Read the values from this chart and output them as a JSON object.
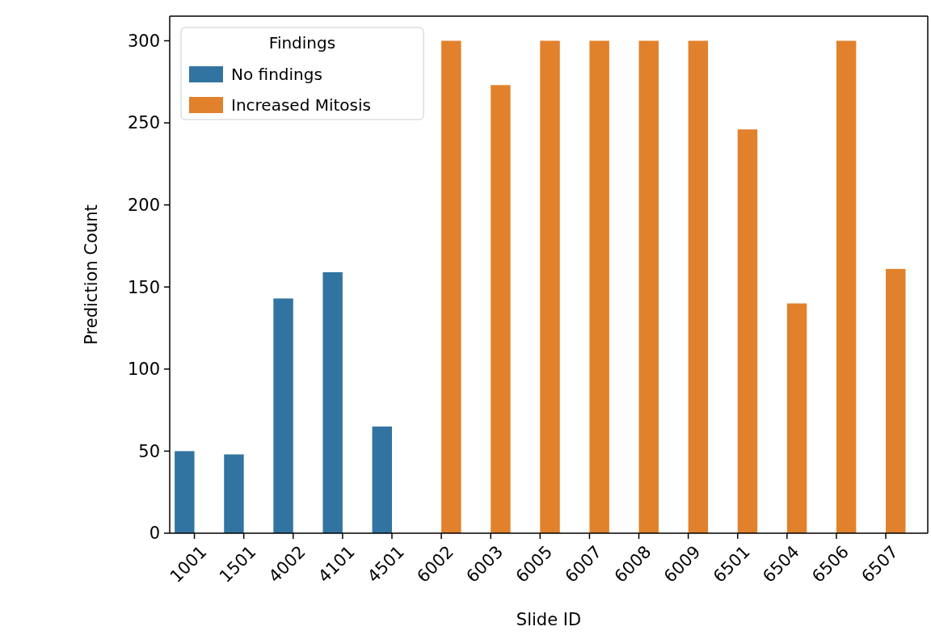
{
  "chart_data": {
    "type": "bar",
    "xlabel": "Slide ID",
    "ylabel": "Prediction Count",
    "legend_title": "Findings",
    "legend": "top left",
    "categories": [
      "1001",
      "1501",
      "4002",
      "4101",
      "4501",
      "6002",
      "6003",
      "6005",
      "6007",
      "6008",
      "6009",
      "6501",
      "6504",
      "6506",
      "6507"
    ],
    "series": [
      {
        "name": "No findings",
        "color": "#3274a1",
        "values": [
          50,
          48,
          143,
          159,
          65,
          null,
          null,
          null,
          null,
          null,
          null,
          null,
          null,
          null,
          null
        ]
      },
      {
        "name": "Increased Mitosis",
        "color": "#e1812c",
        "values": [
          null,
          null,
          null,
          null,
          null,
          300,
          273,
          300,
          300,
          300,
          300,
          246,
          140,
          300,
          161
        ]
      }
    ],
    "ylim": [
      0,
      315
    ],
    "yticks": [
      0,
      50,
      100,
      150,
      200,
      250,
      300
    ]
  }
}
